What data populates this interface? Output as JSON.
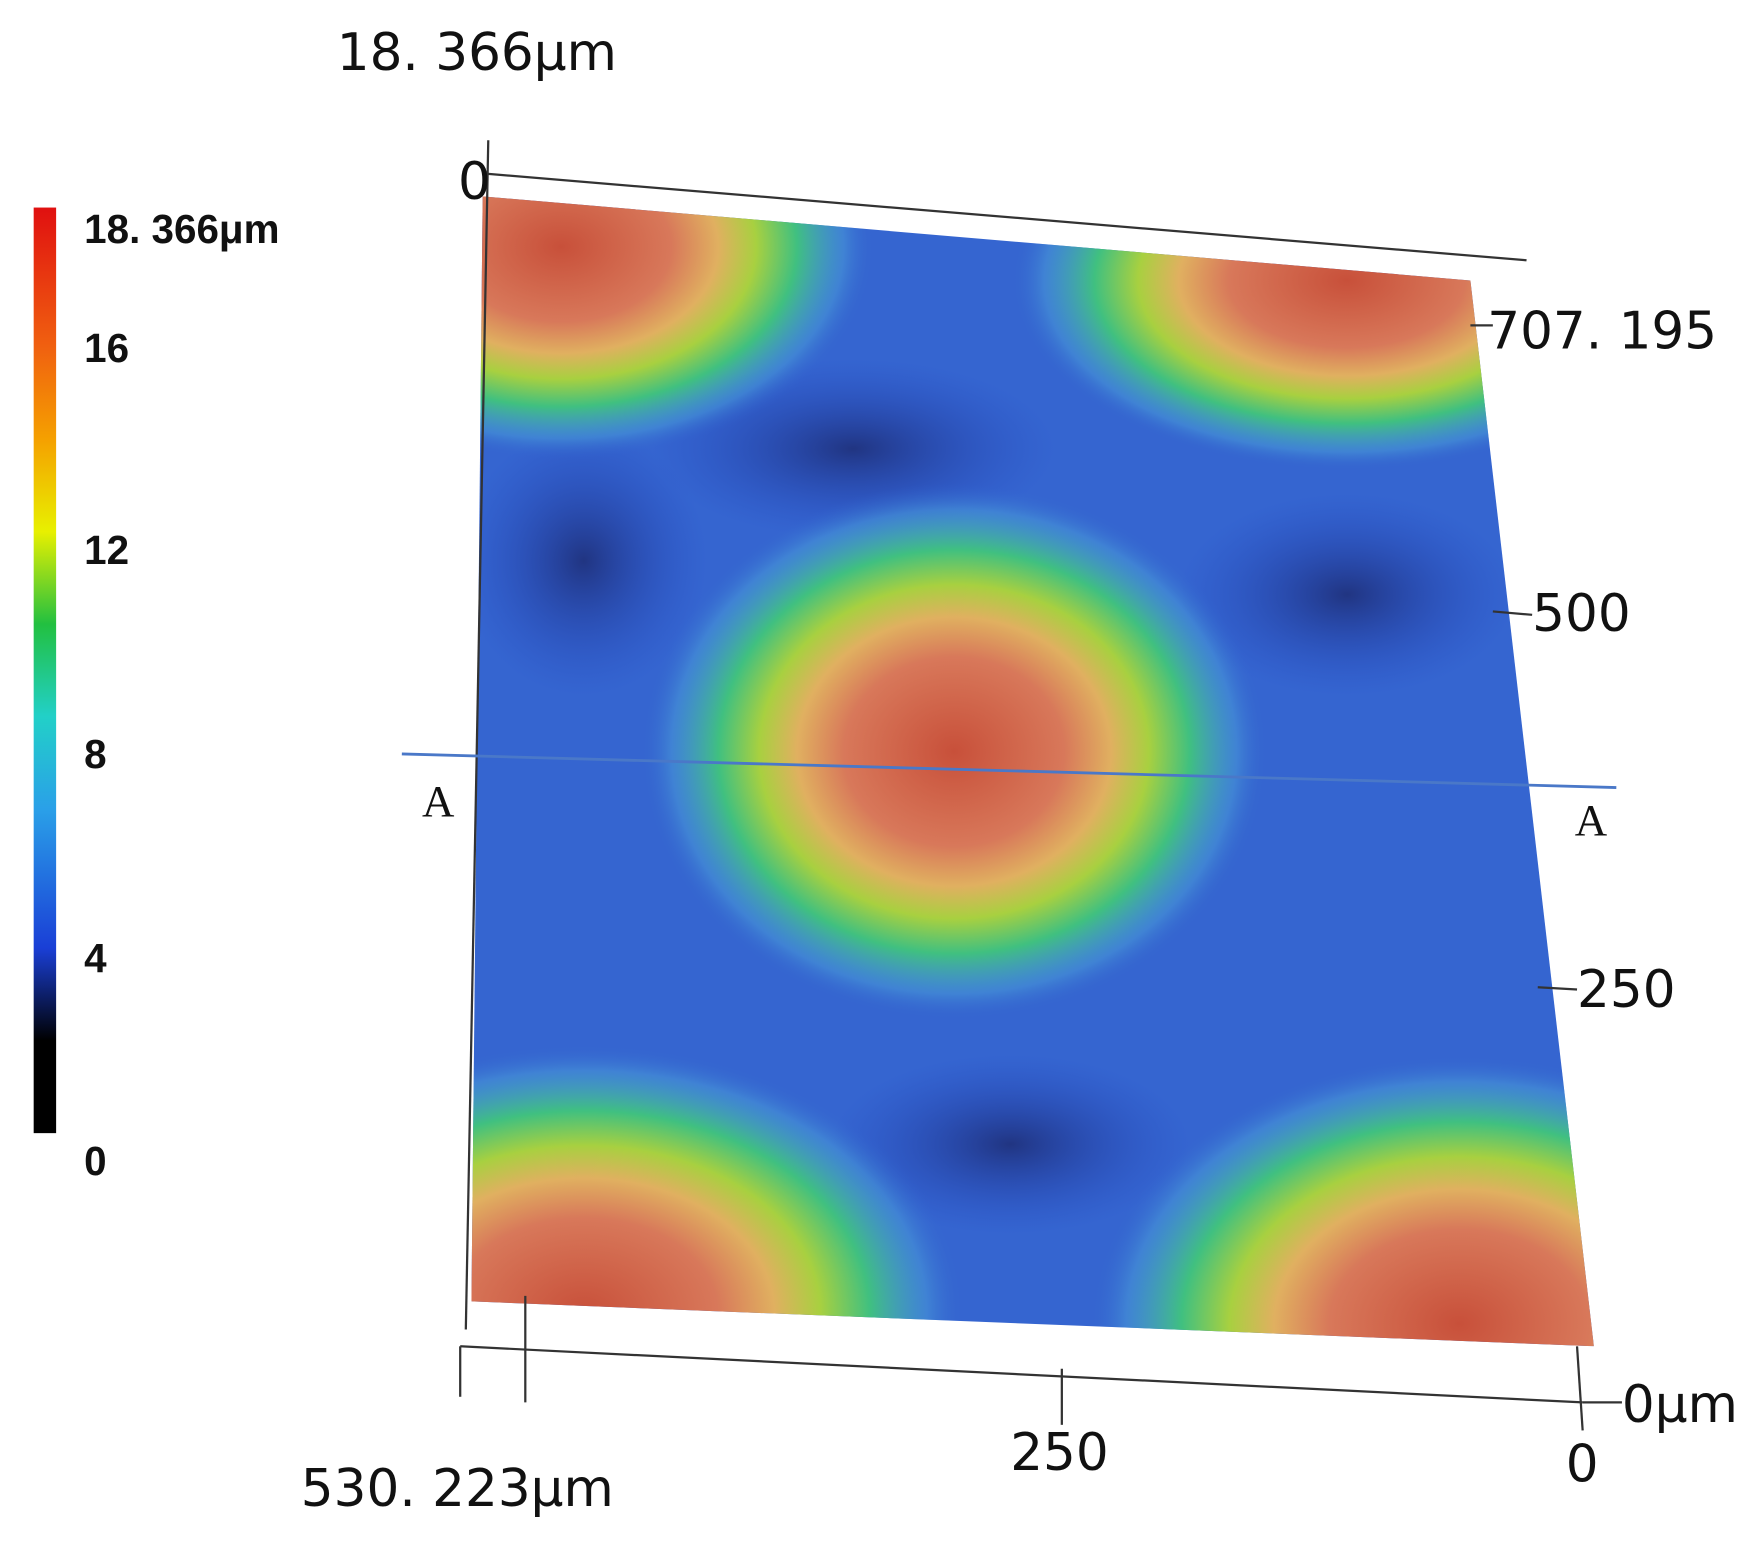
{
  "top_label": "18. 366μm",
  "colorbar": {
    "labels": [
      "18. 366μm",
      "16",
      "12",
      "8",
      "4",
      "0"
    ]
  },
  "right_axis": {
    "labels": [
      "707. 195",
      "500",
      "250",
      "0μm"
    ]
  },
  "bottom_axis": {
    "labels": [
      "530. 223μm",
      "250",
      "0"
    ]
  },
  "origin_label": "0",
  "section": {
    "left": "A",
    "right": "A"
  }
}
